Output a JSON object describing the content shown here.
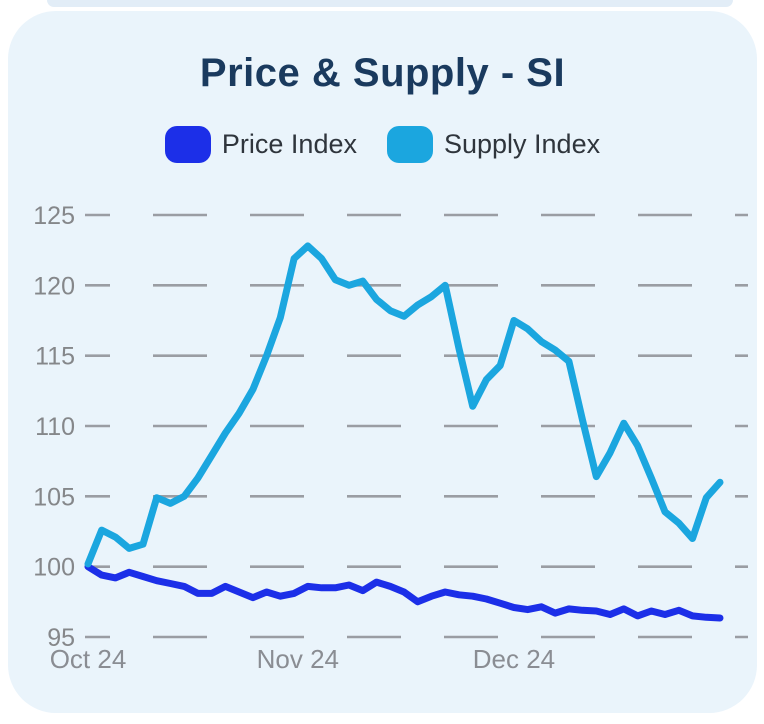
{
  "page": {
    "title": "Price & Supply - SI"
  },
  "legend": {
    "items": [
      {
        "label": "Price Index",
        "color": "#1c2fe8"
      },
      {
        "label": "Supply Index",
        "color": "#1ba6df"
      }
    ]
  },
  "chart_data": {
    "type": "line",
    "title": "Price & Supply - SI",
    "xlabel": "",
    "ylabel": "",
    "ylim": [
      95,
      125
    ],
    "y_ticks": [
      125,
      120,
      115,
      110,
      105,
      100,
      95
    ],
    "x_ticks": [
      {
        "label": "Oct 24",
        "frac": 0.0
      },
      {
        "label": "Nov 24",
        "frac": 0.332
      },
      {
        "label": "Dec 24",
        "frac": 0.674
      }
    ],
    "grid": "horizontal-dashed",
    "grid_color": "#9a9da3",
    "legend_position": "top",
    "series": [
      {
        "name": "Price Index",
        "color": "#1c2fe8",
        "values": [
          100.0,
          99.4,
          99.2,
          99.6,
          99.3,
          99.0,
          98.8,
          98.6,
          98.1,
          98.1,
          98.6,
          98.2,
          97.8,
          98.2,
          97.9,
          98.1,
          98.6,
          98.5,
          98.5,
          98.7,
          98.3,
          98.9,
          98.6,
          98.2,
          97.5,
          97.9,
          98.2,
          98.0,
          97.9,
          97.7,
          97.4,
          97.1,
          96.95,
          97.15,
          96.7,
          97.0,
          96.9,
          96.85,
          96.6,
          97.0,
          96.5,
          96.85,
          96.6,
          96.9,
          96.5,
          96.4,
          96.35
        ]
      },
      {
        "name": "Supply Index",
        "color": "#1ba6df",
        "values": [
          100.2,
          102.6,
          102.1,
          101.3,
          101.6,
          104.9,
          104.5,
          105.0,
          106.3,
          107.9,
          109.5,
          110.9,
          112.6,
          115.0,
          117.7,
          121.9,
          122.8,
          121.9,
          120.4,
          120.0,
          120.3,
          119.0,
          118.2,
          117.8,
          118.6,
          119.2,
          120.0,
          115.5,
          111.4,
          113.3,
          114.3,
          117.5,
          116.9,
          116.0,
          115.4,
          114.6,
          110.4,
          106.4,
          108.1,
          110.2,
          108.6,
          106.3,
          103.9,
          103.1,
          102.0,
          104.9,
          106.0
        ]
      }
    ]
  }
}
